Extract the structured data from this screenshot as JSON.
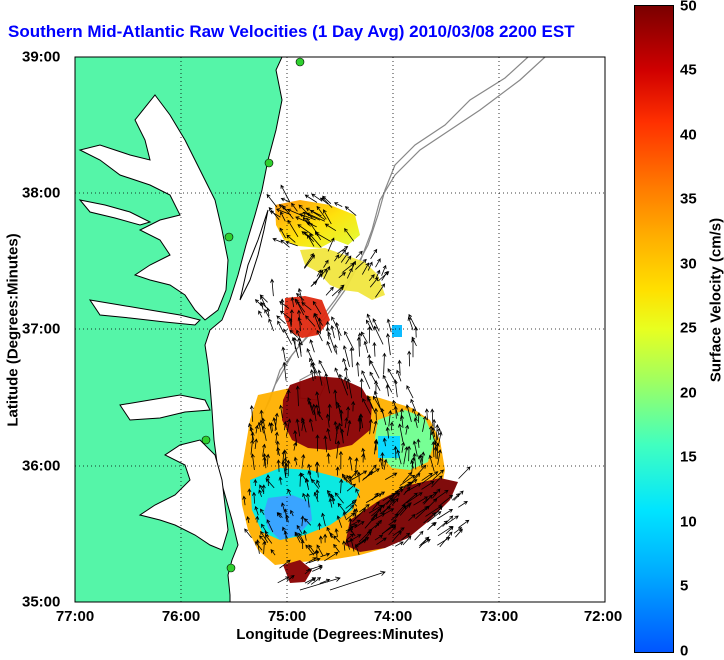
{
  "title": "Southern Mid-Atlantic Raw Velocities (1 Day Avg) 2010/03/08 2200 EST",
  "x_axis": {
    "label": "Longitude (Degrees:Minutes)",
    "ticks": [
      "77:00",
      "76:00",
      "75:00",
      "74:00",
      "73:00",
      "72:00"
    ]
  },
  "y_axis": {
    "label": "Latitude (Degrees:Minutes)",
    "ticks": [
      "39:00",
      "38:00",
      "37:00",
      "36:00",
      "35:00"
    ]
  },
  "colorbar": {
    "label": "Surface Velocity (cm/s)",
    "ticks": [
      "50",
      "45",
      "40",
      "35",
      "30",
      "25",
      "20",
      "15",
      "10",
      "5",
      "0"
    ],
    "min": 0,
    "max": 50
  },
  "colors": {
    "land": "#55f5a8",
    "title": "#0000ff",
    "station": "#2fd02f"
  }
}
